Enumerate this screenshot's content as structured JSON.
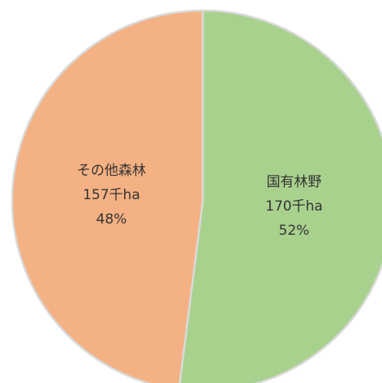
{
  "chart_data": {
    "type": "pie",
    "categories": [
      "国有林野",
      "その他森林"
    ],
    "values": [
      52,
      48
    ],
    "value_labels": [
      "52%",
      "48%"
    ],
    "amount_labels": [
      "170千ha",
      "157千ha"
    ],
    "colors": [
      "#a9d18e",
      "#f4b183"
    ]
  }
}
